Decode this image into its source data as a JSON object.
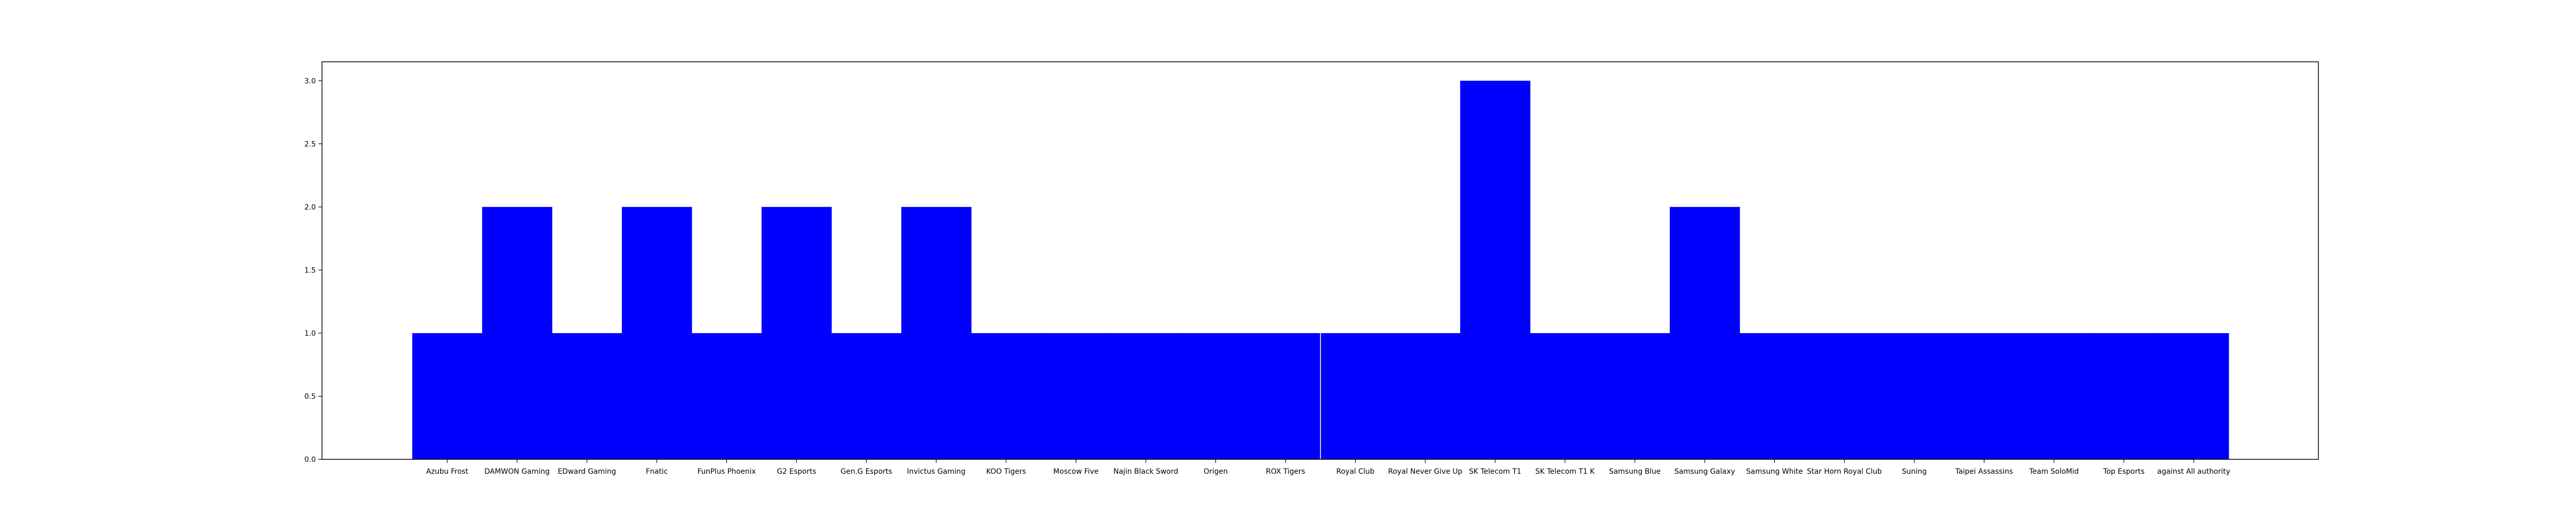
{
  "chart_data": {
    "type": "bar",
    "title": "",
    "xlabel": "",
    "ylabel": "",
    "categories": [
      "Azubu Frost",
      "DAMWON Gaming",
      "EDward Gaming",
      "Fnatic",
      "FunPlus Phoenix",
      "G2 Esports",
      "Gen.G Esports",
      "Invictus Gaming",
      "KOO Tigers",
      "Moscow Five",
      "Najin Black Sword",
      "Origen",
      "ROX Tigers",
      "Royal Club",
      "Royal Never Give Up",
      "SK Telecom T1",
      "SK Telecom T1 K",
      "Samsung Blue",
      "Samsung Galaxy",
      "Samsung White",
      "Star Horn Royal Club",
      "Suning",
      "Taipei Assassins",
      "Team SoloMid",
      "Top Esports",
      "against All authority"
    ],
    "values": [
      1,
      2,
      1,
      2,
      1,
      2,
      1,
      2,
      1,
      1,
      1,
      1,
      1,
      1,
      1,
      3,
      1,
      1,
      2,
      1,
      1,
      1,
      1,
      1,
      1,
      1
    ],
    "ylim": [
      0,
      3.15
    ],
    "yticks": [
      0.0,
      0.5,
      1.0,
      1.5,
      2.0,
      2.5,
      3.0
    ],
    "ytick_labels": [
      "0.0",
      "0.5",
      "1.0",
      "1.5",
      "2.0",
      "2.5",
      "3.0"
    ],
    "grid": false,
    "bar_color": "#0000ff",
    "separator_color": "#d0d0d0"
  }
}
